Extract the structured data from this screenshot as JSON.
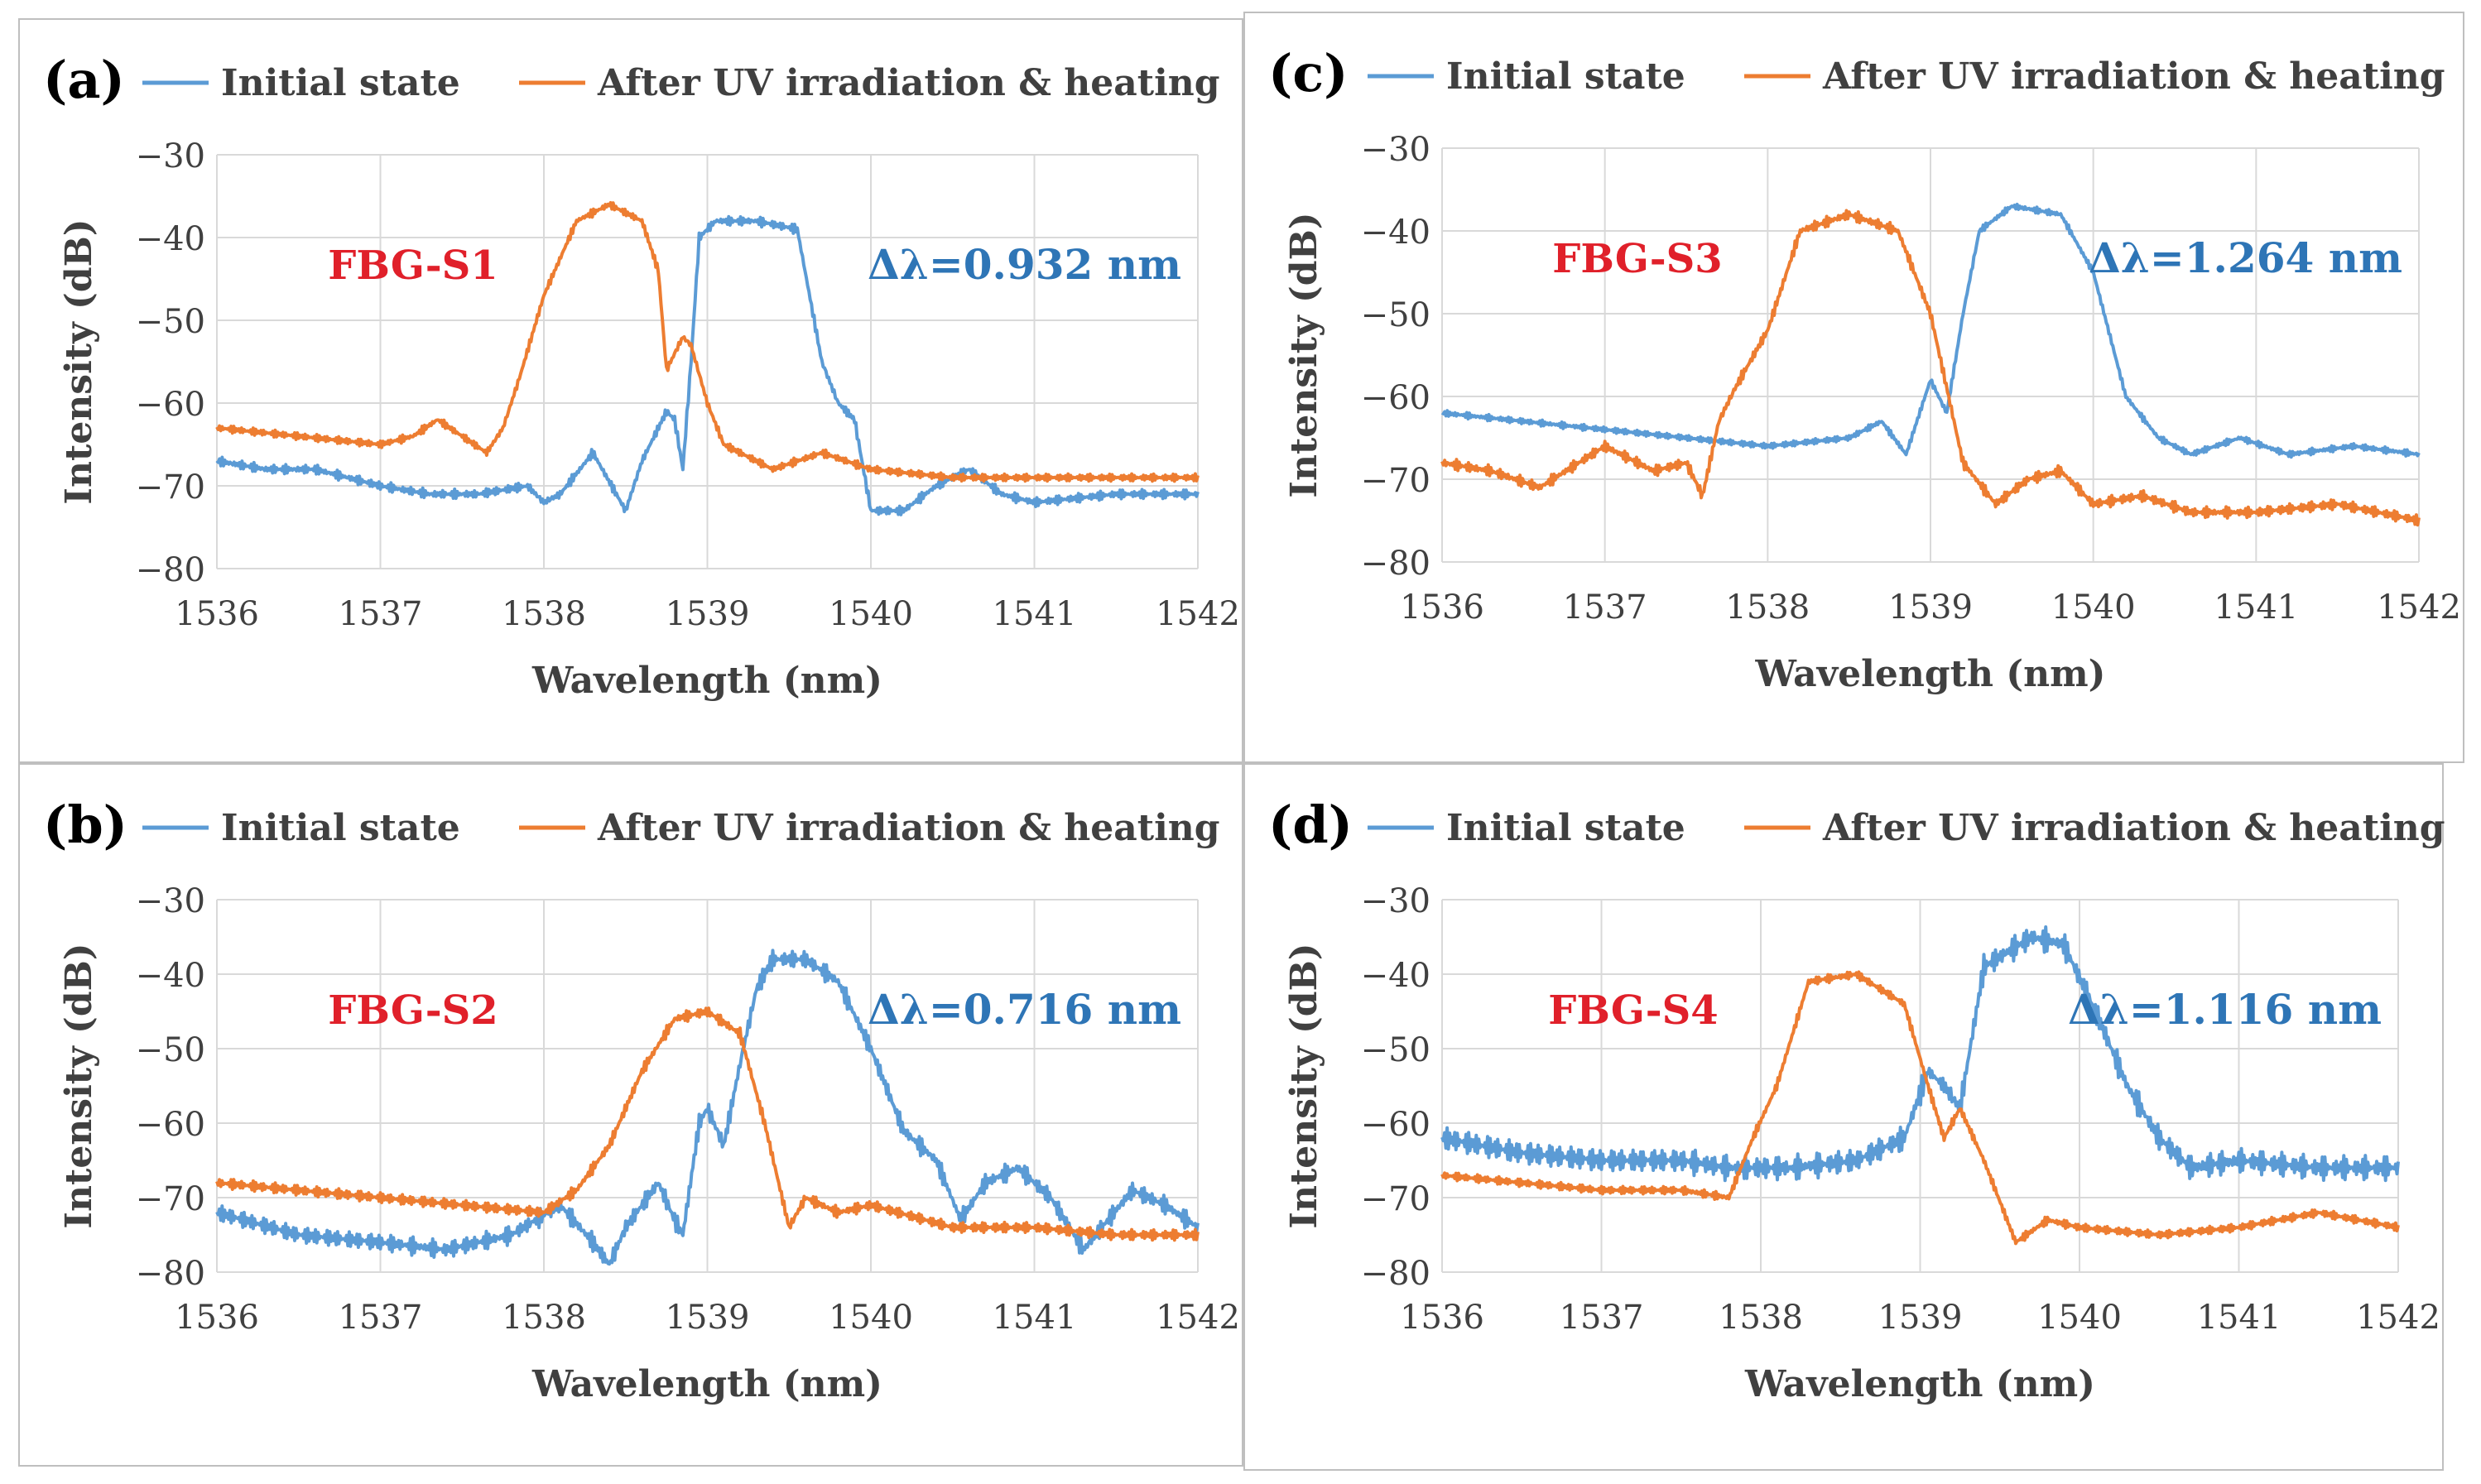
{
  "figure": {
    "panels": [
      {
        "panel_label": "(a)",
        "sample_label": "FBG-S1",
        "shift_label": "Δλ=0.932 nm"
      },
      {
        "panel_label": "(b)",
        "sample_label": "FBG-S2",
        "shift_label": "Δλ=0.716 nm"
      },
      {
        "panel_label": "(c)",
        "sample_label": "FBG-S3",
        "shift_label": "Δλ=1.264 nm"
      },
      {
        "panel_label": "(d)",
        "sample_label": "FBG-S4",
        "shift_label": "Δλ=1.116 nm"
      }
    ],
    "colors": {
      "initial": "#5b9bd5",
      "after": "#ed7d31",
      "sample_label": "#e0202a",
      "shift_label": "#2e75b6",
      "grid": "#d9d9d9",
      "text": "#404040"
    }
  },
  "chart_data": [
    {
      "type": "line",
      "panel": "(a)",
      "title": "",
      "xlabel": "Wavelength (nm)",
      "ylabel": "Intensity (dB)",
      "xlim": [
        1536,
        1542
      ],
      "ylim": [
        -80,
        -30
      ],
      "xticks": [
        1536,
        1537,
        1538,
        1539,
        1540,
        1541,
        1542
      ],
      "yticks": [
        -30,
        -40,
        -50,
        -60,
        -70,
        -80
      ],
      "ytick_labels": [
        "−30",
        "−40",
        "−50",
        "−60",
        "−70",
        "−80"
      ],
      "legend": "top",
      "annotations": [
        "FBG-S1",
        "Δλ=0.932 nm"
      ],
      "series": [
        {
          "name": "Initial state",
          "color": "#5b9bd5",
          "ripple": 0.6,
          "x": [
            1536,
            1536.3,
            1536.6,
            1537,
            1537.3,
            1537.6,
            1537.9,
            1538.0,
            1538.1,
            1538.3,
            1538.5,
            1538.6,
            1538.75,
            1538.8,
            1538.85,
            1538.9,
            1538.95,
            1539.05,
            1539.3,
            1539.55,
            1539.7,
            1539.8,
            1539.9,
            1540.0,
            1540.2,
            1540.4,
            1540.6,
            1540.8,
            1541,
            1541.5,
            1542
          ],
          "y": [
            -67,
            -68,
            -68,
            -70,
            -71,
            -71,
            -70,
            -72,
            -71,
            -66,
            -73,
            -67,
            -61,
            -62,
            -68,
            -55,
            -40,
            -38,
            -38,
            -39,
            -55,
            -60,
            -62,
            -73,
            -73,
            -70,
            -68,
            -71,
            -72,
            -71,
            -71
          ]
        },
        {
          "name": "After UV irradiation & heating",
          "color": "#ed7d31",
          "ripple": 0.5,
          "x": [
            1536,
            1536.5,
            1537,
            1537.2,
            1537.35,
            1537.5,
            1537.65,
            1537.75,
            1537.85,
            1538.0,
            1538.2,
            1538.4,
            1538.6,
            1538.7,
            1538.75,
            1538.85,
            1538.9,
            1539.0,
            1539.1,
            1539.4,
            1539.7,
            1540.0,
            1540.5,
            1541,
            1541.5,
            1542
          ],
          "y": [
            -63,
            -64,
            -65,
            -64,
            -62,
            -64,
            -66,
            -63,
            -57,
            -47,
            -38,
            -36,
            -38,
            -44,
            -56,
            -52,
            -53,
            -60,
            -65,
            -68,
            -66,
            -68,
            -69,
            -69,
            -69,
            -69
          ]
        }
      ]
    },
    {
      "type": "line",
      "panel": "(b)",
      "title": "",
      "xlabel": "Wavelength (nm)",
      "ylabel": "Intensity (dB)",
      "xlim": [
        1536,
        1542
      ],
      "ylim": [
        -80,
        -30
      ],
      "xticks": [
        1536,
        1537,
        1538,
        1539,
        1540,
        1541,
        1542
      ],
      "yticks": [
        -30,
        -40,
        -50,
        -60,
        -70,
        -80
      ],
      "ytick_labels": [
        "−30",
        "−40",
        "−50",
        "−60",
        "−70",
        "−80"
      ],
      "legend": "top",
      "annotations": [
        "FBG-S2",
        "Δλ=0.716 nm"
      ],
      "series": [
        {
          "name": "Initial state",
          "color": "#5b9bd5",
          "ripple": 1.3,
          "x": [
            1536,
            1536.5,
            1537,
            1537.4,
            1537.8,
            1538.1,
            1538.3,
            1538.4,
            1538.5,
            1538.7,
            1538.8,
            1538.85,
            1538.95,
            1539.0,
            1539.1,
            1539.2,
            1539.3,
            1539.4,
            1539.6,
            1539.8,
            1540.0,
            1540.2,
            1540.4,
            1540.55,
            1540.7,
            1540.9,
            1541.1,
            1541.3,
            1541.6,
            1541.8,
            1542
          ],
          "y": [
            -72,
            -75,
            -76,
            -77,
            -75,
            -71,
            -76,
            -79,
            -74,
            -68,
            -73,
            -75,
            -60,
            -58,
            -63,
            -52,
            -42,
            -38,
            -38,
            -41,
            -50,
            -61,
            -65,
            -73,
            -68,
            -66,
            -70,
            -77,
            -69,
            -71,
            -74
          ]
        },
        {
          "name": "After UV irradiation & heating",
          "color": "#ed7d31",
          "ripple": 0.8,
          "x": [
            1536,
            1536.5,
            1537,
            1537.5,
            1538,
            1538.2,
            1538.4,
            1538.6,
            1538.8,
            1539.0,
            1539.2,
            1539.35,
            1539.5,
            1539.6,
            1539.8,
            1540.0,
            1540.5,
            1541,
            1541.5,
            1542
          ],
          "y": [
            -68,
            -69,
            -70,
            -71,
            -72,
            -69,
            -63,
            -53,
            -46,
            -45,
            -48,
            -60,
            -74,
            -70,
            -72,
            -71,
            -74,
            -74,
            -75,
            -75
          ]
        }
      ]
    },
    {
      "type": "line",
      "panel": "(c)",
      "title": "",
      "xlabel": "Wavelength (nm)",
      "ylabel": "Intensity (dB)",
      "xlim": [
        1536,
        1542
      ],
      "ylim": [
        -80,
        -30
      ],
      "xticks": [
        1536,
        1537,
        1538,
        1539,
        1540,
        1541,
        1542
      ],
      "yticks": [
        -30,
        -40,
        -50,
        -60,
        -70,
        -80
      ],
      "ytick_labels": [
        "−30",
        "−40",
        "−50",
        "−60",
        "−70",
        "−80"
      ],
      "legend": "top",
      "annotations": [
        "FBG-S3",
        "Δλ=1.264 nm"
      ],
      "series": [
        {
          "name": "Initial state",
          "color": "#5b9bd5",
          "ripple": 0.4,
          "x": [
            1536,
            1537,
            1537.5,
            1538,
            1538.5,
            1538.7,
            1538.85,
            1539.0,
            1539.1,
            1539.2,
            1539.3,
            1539.5,
            1539.8,
            1540.0,
            1540.2,
            1540.4,
            1540.6,
            1540.9,
            1541.2,
            1541.6,
            1542
          ],
          "y": [
            -62,
            -64,
            -65,
            -66,
            -65,
            -63,
            -67,
            -58,
            -62,
            -50,
            -40,
            -37,
            -38,
            -45,
            -60,
            -65,
            -67,
            -65,
            -67,
            -66,
            -67
          ]
        },
        {
          "name": "After UV irradiation & heating",
          "color": "#ed7d31",
          "ripple": 0.7,
          "x": [
            1536,
            1536.3,
            1536.6,
            1537.0,
            1537.3,
            1537.5,
            1537.6,
            1537.7,
            1537.8,
            1538.0,
            1538.2,
            1538.5,
            1538.8,
            1539.0,
            1539.2,
            1539.4,
            1539.6,
            1539.8,
            1540.0,
            1540.3,
            1540.6,
            1541.0,
            1541.5,
            1542
          ],
          "y": [
            -68,
            -69,
            -71,
            -66,
            -69,
            -68,
            -72,
            -63,
            -59,
            -52,
            -40,
            -38,
            -40,
            -50,
            -68,
            -73,
            -70,
            -69,
            -73,
            -72,
            -74,
            -74,
            -73,
            -75
          ]
        }
      ]
    },
    {
      "type": "line",
      "panel": "(d)",
      "title": "",
      "xlabel": "Wavelength (nm)",
      "ylabel": "Intensity (dB)",
      "xlim": [
        1536,
        1542
      ],
      "ylim": [
        -80,
        -30
      ],
      "xticks": [
        1536,
        1537,
        1538,
        1539,
        1540,
        1541,
        1542
      ],
      "yticks": [
        -30,
        -40,
        -50,
        -60,
        -70,
        -80
      ],
      "ytick_labels": [
        "−30",
        "−40",
        "−50",
        "−60",
        "−70",
        "−80"
      ],
      "legend": "top",
      "annotations": [
        "FBG-S4",
        "Δλ=1.116 nm"
      ],
      "series": [
        {
          "name": "Initial state",
          "color": "#5b9bd5",
          "ripple": 1.8,
          "x": [
            1536,
            1536.5,
            1537,
            1537.5,
            1537.8,
            1538.2,
            1538.6,
            1538.9,
            1539.05,
            1539.15,
            1539.25,
            1539.4,
            1539.7,
            1539.9,
            1540.1,
            1540.3,
            1540.5,
            1540.7,
            1541.0,
            1541.5,
            1542
          ],
          "y": [
            -62,
            -64,
            -65,
            -65,
            -66,
            -66,
            -65,
            -62,
            -53,
            -55,
            -58,
            -39,
            -35,
            -36,
            -45,
            -55,
            -62,
            -66,
            -65,
            -66,
            -66
          ]
        },
        {
          "name": "After UV irradiation & heating",
          "color": "#ed7d31",
          "ripple": 0.6,
          "x": [
            1536,
            1536.5,
            1537,
            1537.5,
            1537.8,
            1537.95,
            1538.1,
            1538.3,
            1538.6,
            1538.9,
            1539.05,
            1539.15,
            1539.25,
            1539.4,
            1539.6,
            1539.8,
            1540.0,
            1540.5,
            1541.0,
            1541.5,
            1542
          ],
          "y": [
            -67,
            -68,
            -69,
            -69,
            -70,
            -62,
            -55,
            -41,
            -40,
            -44,
            -55,
            -62,
            -58,
            -65,
            -76,
            -73,
            -74,
            -75,
            -74,
            -72,
            -74
          ]
        }
      ]
    }
  ]
}
